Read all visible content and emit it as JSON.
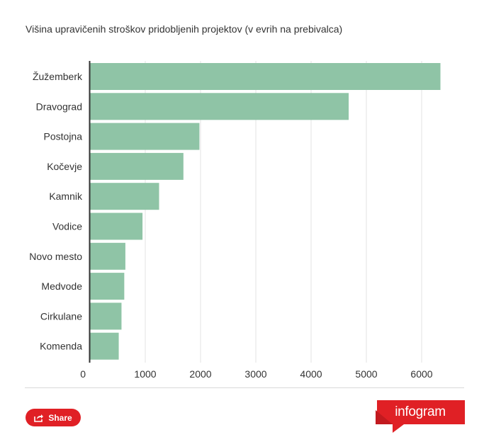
{
  "chart_data": {
    "type": "bar",
    "orientation": "horizontal",
    "title": "Višina upravičenih stroškov pridobljenih projektov (v evrih na prebivalca)",
    "categories": [
      "Žužemberk",
      "Dravograd",
      "Postojna",
      "Kočevje",
      "Kamnik",
      "Vodice",
      "Novo mesto",
      "Medvode",
      "Cirkulane",
      "Komenda"
    ],
    "values": [
      6340,
      4680,
      1980,
      1690,
      1250,
      950,
      640,
      620,
      570,
      520
    ],
    "xlim": [
      0,
      6500
    ],
    "xticks": [
      0,
      1000,
      2000,
      3000,
      4000,
      5000,
      6000
    ],
    "xlabel": "",
    "ylabel": "",
    "grid": true,
    "bar_color": "#8fc4a6"
  },
  "footer": {
    "share_label": "Share",
    "brand": "infogram",
    "brand_color": "#e02025"
  }
}
